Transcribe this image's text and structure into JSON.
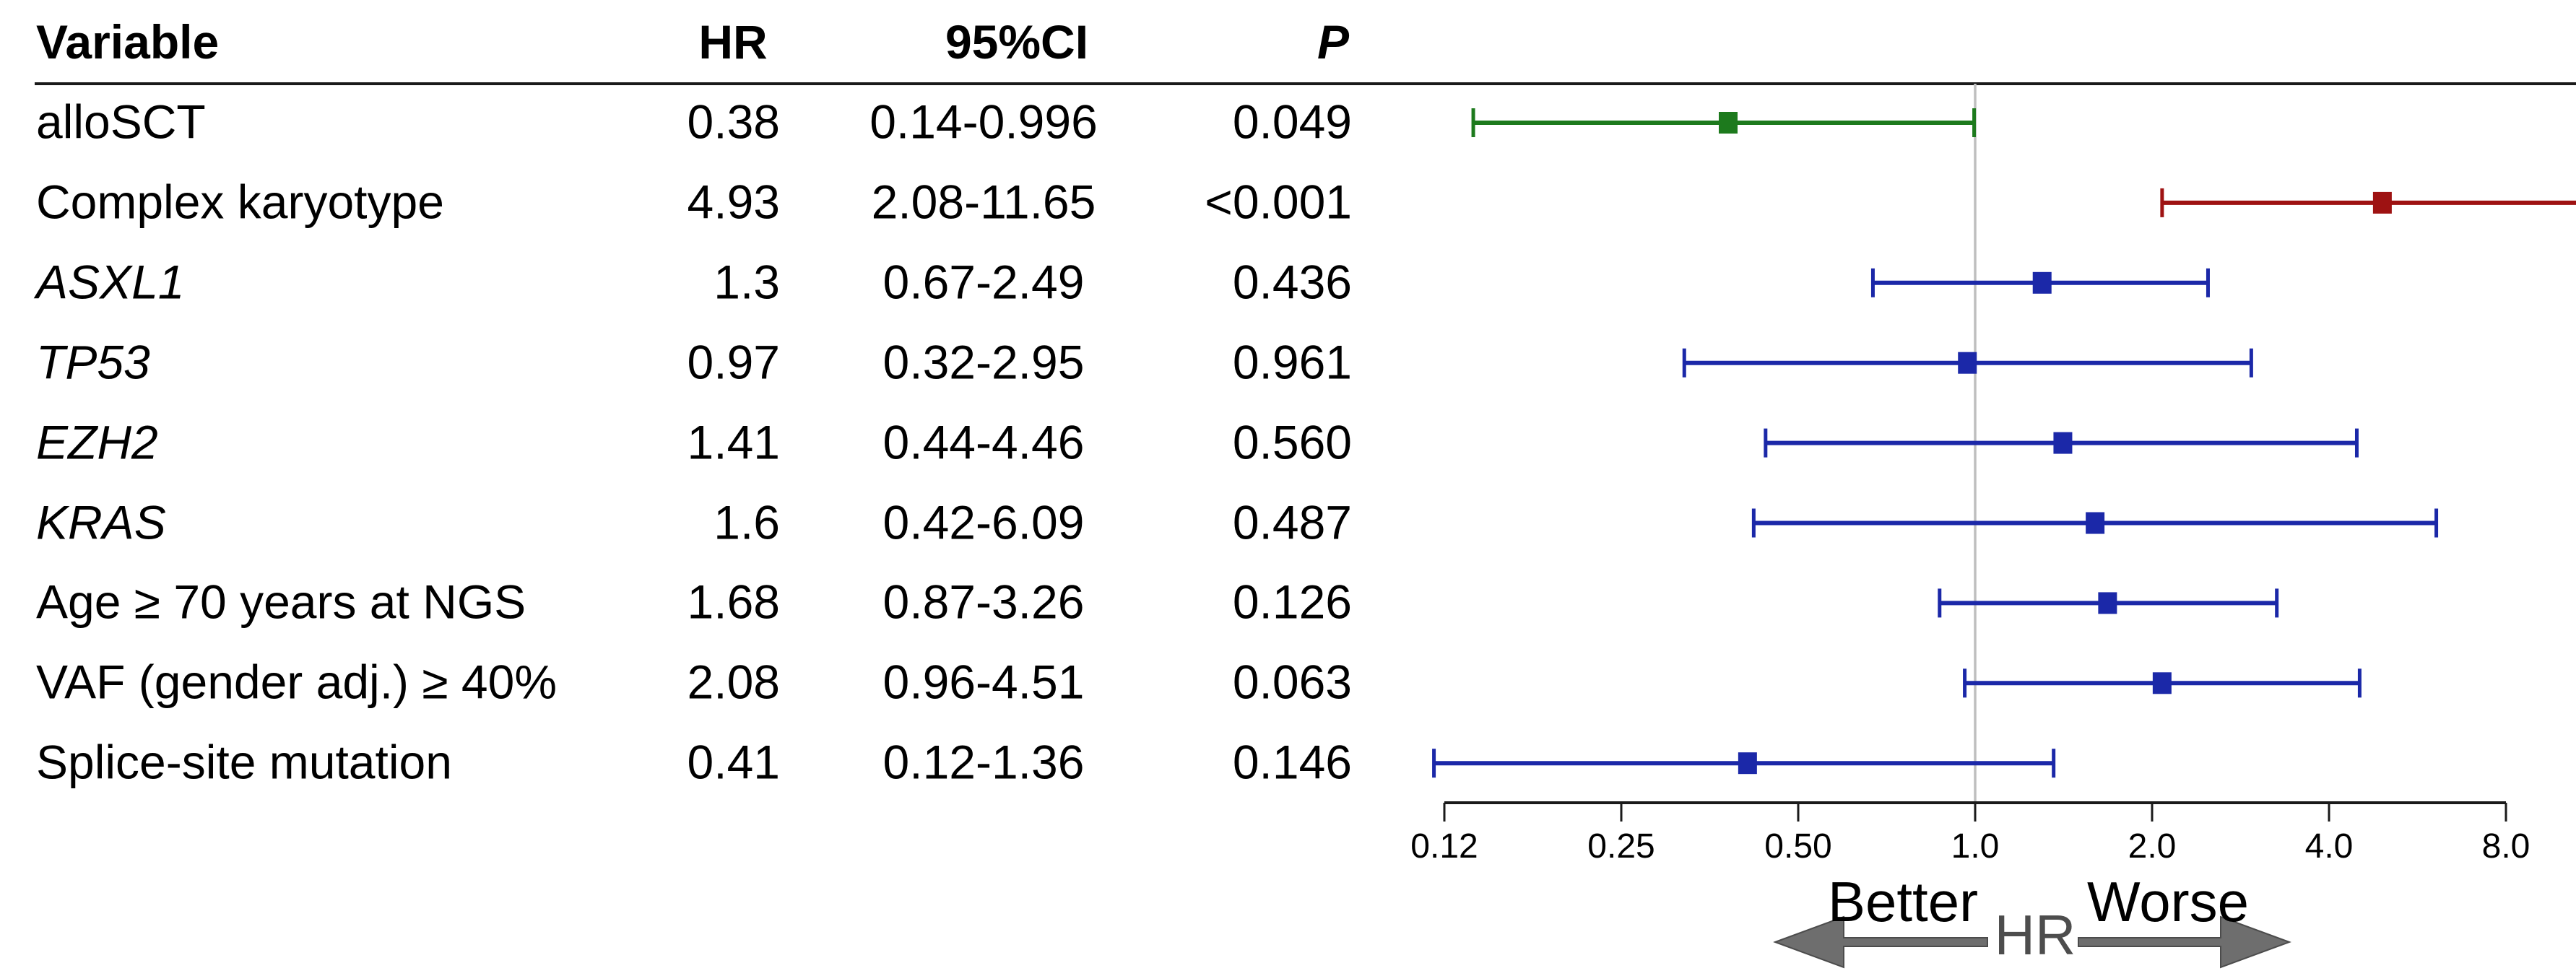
{
  "table": {
    "headers": {
      "variable": "Variable",
      "hr": "HR",
      "ci": "95%CI",
      "p": "P"
    }
  },
  "chart_data": {
    "type": "forest",
    "x_axis": {
      "scale": "log2",
      "ticks": [
        {
          "value": 0.125,
          "label": "0.12"
        },
        {
          "value": 0.25,
          "label": "0.25"
        },
        {
          "value": 0.5,
          "label": "0.50"
        },
        {
          "value": 1.0,
          "label": "1.0"
        },
        {
          "value": 2.0,
          "label": "2.0"
        },
        {
          "value": 4.0,
          "label": "4.0"
        },
        {
          "value": 8.0,
          "label": "8.0"
        }
      ],
      "reference_value": 1.0
    },
    "rows": [
      {
        "variable": "alloSCT",
        "italic": false,
        "hr": 0.38,
        "hr_label": "0.38",
        "ci_low": 0.14,
        "ci_high": 0.996,
        "ci_label": "0.14-0.996",
        "p_label": "0.049",
        "color": "#1d7a1d"
      },
      {
        "variable": "Complex karyotype",
        "italic": false,
        "hr": 4.93,
        "hr_label": "4.93",
        "ci_low": 2.08,
        "ci_high": 11.65,
        "ci_label": "2.08-11.65",
        "p_label": "<0.001",
        "color": "#9e1212"
      },
      {
        "variable": "ASXL1",
        "italic": true,
        "hr": 1.3,
        "hr_label": "1.3",
        "ci_low": 0.67,
        "ci_high": 2.49,
        "ci_label": "0.67-2.49",
        "p_label": "0.436",
        "color": "#1b28a8"
      },
      {
        "variable": "TP53",
        "italic": true,
        "hr": 0.97,
        "hr_label": "0.97",
        "ci_low": 0.32,
        "ci_high": 2.95,
        "ci_label": "0.32-2.95",
        "p_label": "0.961",
        "color": "#1b28a8"
      },
      {
        "variable": "EZH2",
        "italic": true,
        "hr": 1.41,
        "hr_label": "1.41",
        "ci_low": 0.44,
        "ci_high": 4.46,
        "ci_label": "0.44-4.46",
        "p_label": "0.560",
        "color": "#1b28a8"
      },
      {
        "variable": "KRAS",
        "italic": true,
        "hr": 1.6,
        "hr_label": "1.6",
        "ci_low": 0.42,
        "ci_high": 6.09,
        "ci_label": "0.42-6.09",
        "p_label": "0.487",
        "color": "#1b28a8"
      },
      {
        "variable": "Age ≥ 70 years at NGS",
        "italic": false,
        "hr": 1.68,
        "hr_label": "1.68",
        "ci_low": 0.87,
        "ci_high": 3.26,
        "ci_label": "0.87-3.26",
        "p_label": "0.126",
        "color": "#1b28a8"
      },
      {
        "variable": "VAF (gender adj.) ≥ 40%",
        "italic": false,
        "hr": 2.08,
        "hr_label": "2.08",
        "ci_low": 0.96,
        "ci_high": 4.51,
        "ci_label": "0.96-4.51",
        "p_label": "0.063",
        "color": "#1b28a8"
      },
      {
        "variable": "Splice-site mutation",
        "italic": false,
        "hr": 0.41,
        "hr_label": "0.41",
        "ci_low": 0.12,
        "ci_high": 1.36,
        "ci_label": "0.12-1.36",
        "p_label": "0.146",
        "color": "#1b28a8"
      }
    ],
    "annotations": {
      "better": "Better",
      "hr_axis": "HR",
      "worse": "Worse"
    },
    "colors": {
      "reference_line": "#bfbfbf",
      "axis": "#1a1a1a",
      "arrow_fill": "#6e6e6e",
      "arrow_stroke": "#4c4c4c",
      "hr_axis_text": "#4d4d4d"
    }
  }
}
